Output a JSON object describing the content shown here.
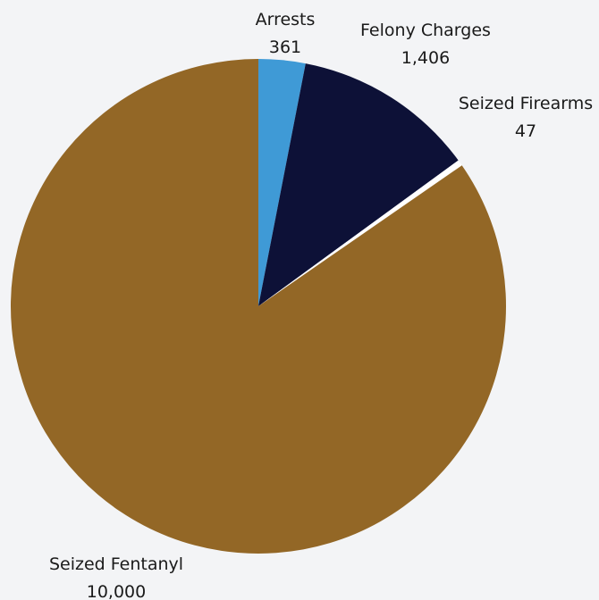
{
  "chart_data": {
    "type": "pie",
    "title": "",
    "slices": [
      {
        "label": "Arrests",
        "value": 361,
        "value_label": "361",
        "color": "#3f9ad6"
      },
      {
        "label": "Felony Charges",
        "value": 1406,
        "value_label": "1,406",
        "color": "#0d1137"
      },
      {
        "label": "Seized Firearms",
        "value": 47,
        "value_label": "47",
        "color": "#ffffff"
      },
      {
        "label": "Seized Fentanyl",
        "value": 10000,
        "value_label": "10,000",
        "color": "#936726"
      }
    ],
    "start_angle": "12 o'clock",
    "direction": "clockwise",
    "legend": "none"
  }
}
